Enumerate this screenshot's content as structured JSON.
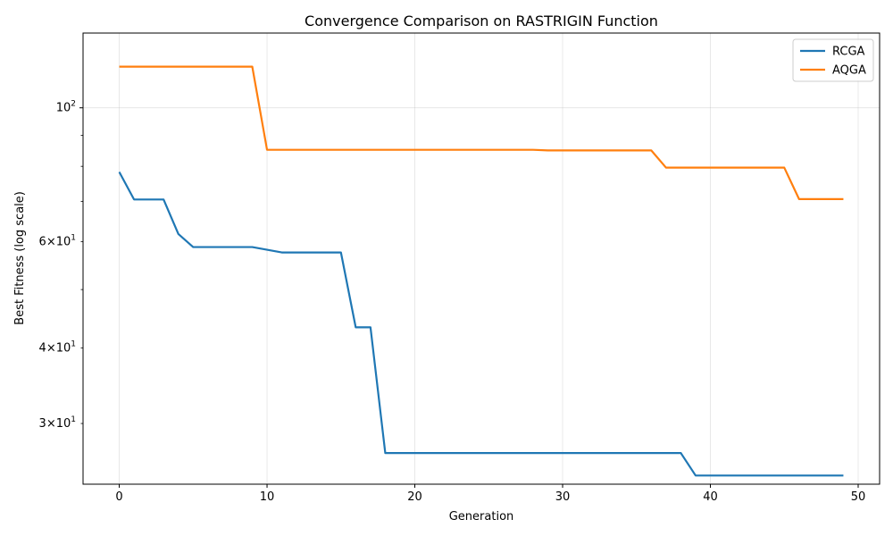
{
  "chart_data": {
    "type": "line",
    "title": "Convergence Comparison on RASTRIGIN Function",
    "xlabel": "Generation",
    "ylabel": "Best Fitness (log scale)",
    "xlim": [
      -2.45,
      51.45
    ],
    "ylim": [
      23.8,
      133
    ],
    "yscale": "log",
    "grid": true,
    "legend_position": "top-right",
    "x_ticks": [
      0,
      10,
      20,
      30,
      40,
      50
    ],
    "y_major_ticks": [
      {
        "value": 100,
        "base": "10",
        "exp": "2"
      }
    ],
    "y_minor_ticks": [
      {
        "value": 30,
        "coef": "3",
        "base": "10",
        "exp": "1"
      },
      {
        "value": 40,
        "coef": "4",
        "base": "10",
        "exp": "1"
      },
      {
        "value": 60,
        "coef": "6",
        "base": "10",
        "exp": "1"
      }
    ],
    "y_unlabeled_minor_ticks": [
      50,
      70,
      80,
      90
    ],
    "x": [
      0,
      1,
      2,
      3,
      4,
      5,
      6,
      7,
      8,
      9,
      10,
      11,
      12,
      13,
      14,
      15,
      16,
      17,
      18,
      19,
      20,
      21,
      22,
      23,
      24,
      25,
      26,
      27,
      28,
      29,
      30,
      31,
      32,
      33,
      34,
      35,
      36,
      37,
      38,
      39,
      40,
      41,
      42,
      43,
      44,
      45,
      46,
      47,
      48,
      49
    ],
    "series": [
      {
        "name": "RCGA",
        "color": "#1f77b4",
        "values": [
          78.3,
          70.5,
          70.5,
          70.5,
          61.8,
          58.8,
          58.8,
          58.8,
          58.8,
          58.8,
          58.2,
          57.6,
          57.6,
          57.6,
          57.6,
          57.6,
          43.3,
          43.3,
          26.8,
          26.8,
          26.8,
          26.8,
          26.8,
          26.8,
          26.8,
          26.8,
          26.8,
          26.8,
          26.8,
          26.8,
          26.8,
          26.8,
          26.8,
          26.8,
          26.8,
          26.8,
          26.8,
          26.8,
          26.8,
          24.6,
          24.6,
          24.6,
          24.6,
          24.6,
          24.6,
          24.6,
          24.6,
          24.6,
          24.6,
          24.6
        ]
      },
      {
        "name": "AQGA",
        "color": "#ff7f0e",
        "values": [
          117,
          117,
          117,
          117,
          117,
          117,
          117,
          117,
          117,
          117,
          85.2,
          85.2,
          85.2,
          85.2,
          85.2,
          85.2,
          85.2,
          85.2,
          85.2,
          85.2,
          85.2,
          85.2,
          85.2,
          85.2,
          85.2,
          85.2,
          85.2,
          85.2,
          85.2,
          85.0,
          85.0,
          85.0,
          85.0,
          85.0,
          85.0,
          85.0,
          85.0,
          79.6,
          79.6,
          79.6,
          79.6,
          79.6,
          79.6,
          79.6,
          79.6,
          79.6,
          70.6,
          70.6,
          70.6,
          70.6
        ]
      }
    ]
  }
}
